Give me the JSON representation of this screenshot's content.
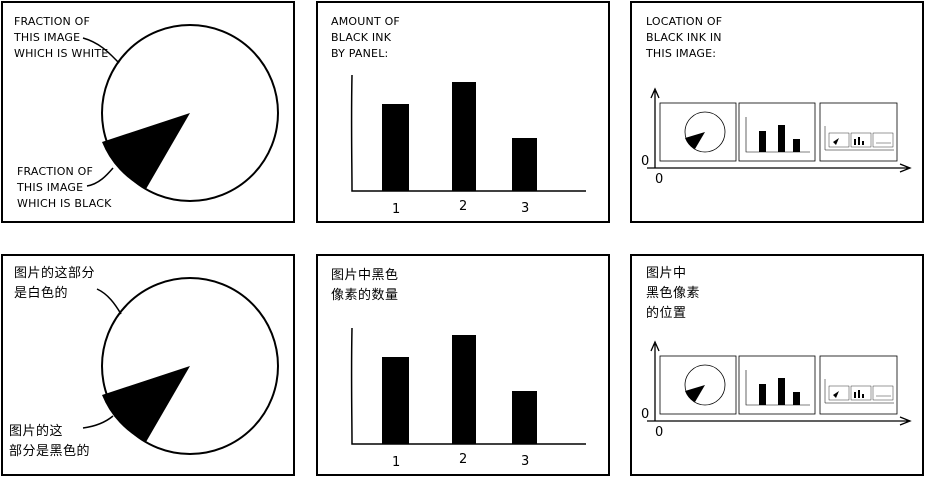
{
  "comic": {
    "rows": [
      {
        "pie": {
          "white_label": "FRACTION OF\nTHIS IMAGE\nWHICH IS WHITE",
          "black_label": "FRACTION OF\nTHIS IMAGE\nWHICH IS BLACK"
        },
        "bar": {
          "title": "AMOUNT OF\nBLACK INK\nBY PANEL:",
          "ticks": [
            "1",
            "2",
            "3"
          ],
          "values": [
            0.64,
            0.8,
            0.39
          ]
        },
        "location": {
          "title": "LOCATION OF\nBLACK INK IN\nTHIS IMAGE:",
          "axis_zero_y": "0",
          "axis_zero_x": "0"
        }
      },
      {
        "pie": {
          "white_label": "图片的这部分\n是白色的",
          "black_label": "图片的这\n部分是黑色的"
        },
        "bar": {
          "title": "图片中黑色\n像素的数量",
          "ticks": [
            "1",
            "2",
            "3"
          ],
          "values": [
            0.64,
            0.8,
            0.39
          ]
        },
        "location": {
          "title": "图片中\n黑色像素\n的位置",
          "axis_zero_y": "0",
          "axis_zero_x": "0"
        }
      }
    ],
    "pie_black_fraction": 0.13,
    "colors": {
      "ink": "#000000",
      "paper": "#ffffff"
    }
  }
}
